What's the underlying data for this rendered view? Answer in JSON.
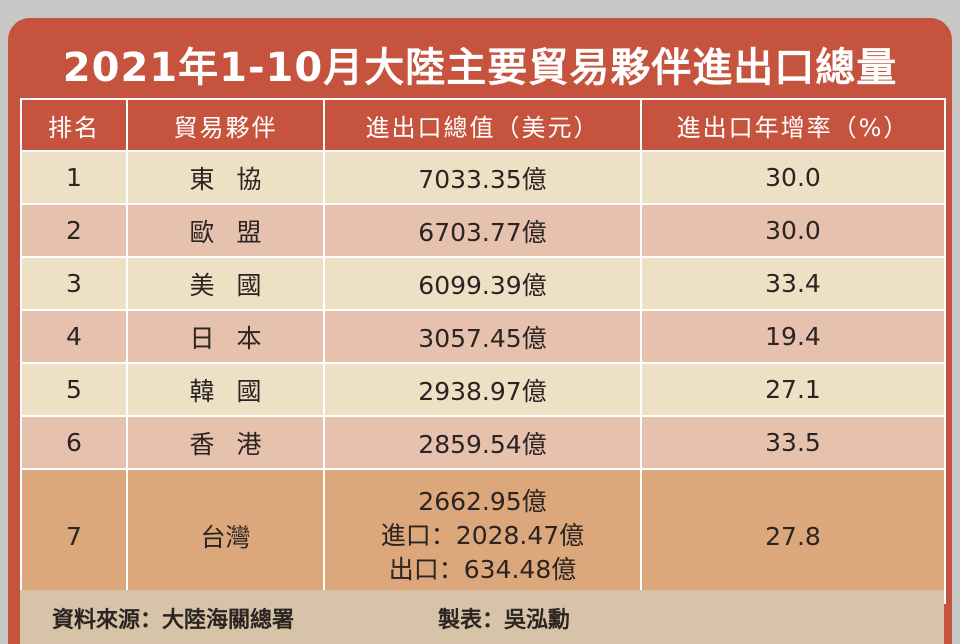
{
  "title": "2021年1-10月大陸主要貿易夥伴進出口總量",
  "chart_data": {
    "type": "table",
    "columns": [
      "排名",
      "貿易夥伴",
      "進出口總值（美元）",
      "進出口年增率（%）"
    ],
    "rows": [
      {
        "rank": "1",
        "partner": "東協",
        "total": "7033.35億",
        "growth": "30.0"
      },
      {
        "rank": "2",
        "partner": "歐盟",
        "total": "6703.77億",
        "growth": "30.0"
      },
      {
        "rank": "3",
        "partner": "美國",
        "total": "6099.39億",
        "growth": "33.4"
      },
      {
        "rank": "4",
        "partner": "日本",
        "total": "3057.45億",
        "growth": "19.4"
      },
      {
        "rank": "5",
        "partner": "韓國",
        "total": "2938.97億",
        "growth": "27.1"
      },
      {
        "rank": "6",
        "partner": "香港",
        "total": "2859.54億",
        "growth": "33.5"
      },
      {
        "rank": "7",
        "partner": "台灣",
        "total": "2662.95億",
        "import": "進口：2028.47億",
        "export": "出口：634.48億",
        "growth": "27.8"
      }
    ]
  },
  "footer": {
    "source": "資料來源：大陸海關總署",
    "maker": "製表：吳泓勳"
  }
}
